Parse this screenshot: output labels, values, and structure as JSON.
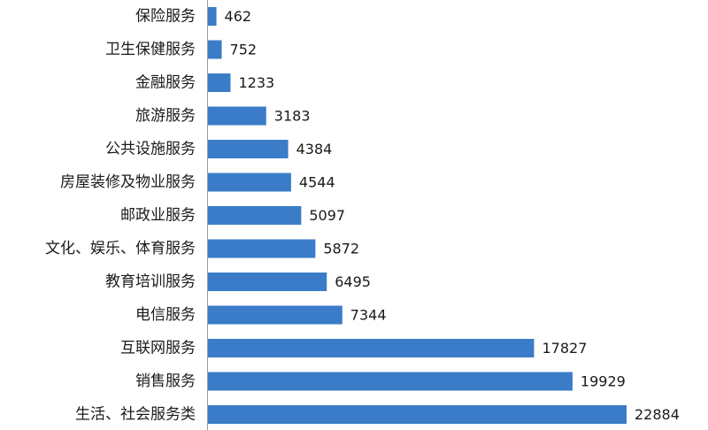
{
  "chart_data": {
    "type": "bar",
    "orientation": "horizontal",
    "categories": [
      "保险服务",
      "卫生保健服务",
      "金融服务",
      "旅游服务",
      "公共设施服务",
      "房屋装修及物业服务",
      "邮政业服务",
      "文化、娱乐、体育服务",
      "教育培训服务",
      "电信服务",
      "互联网服务",
      "销售服务",
      "生活、社会服务类"
    ],
    "values": [
      462,
      752,
      1233,
      3183,
      4384,
      4544,
      5097,
      5872,
      6495,
      7344,
      17827,
      19929,
      22884
    ],
    "value_labels": [
      "462",
      "752",
      "1233",
      "3183",
      "4384",
      "4544",
      "5097",
      "5872",
      "6495",
      "7344",
      "17827",
      "19929",
      "22884"
    ],
    "xlim": [
      0,
      22884
    ],
    "grid": false,
    "legend": "none",
    "bar_color": "#3a7cc8"
  }
}
